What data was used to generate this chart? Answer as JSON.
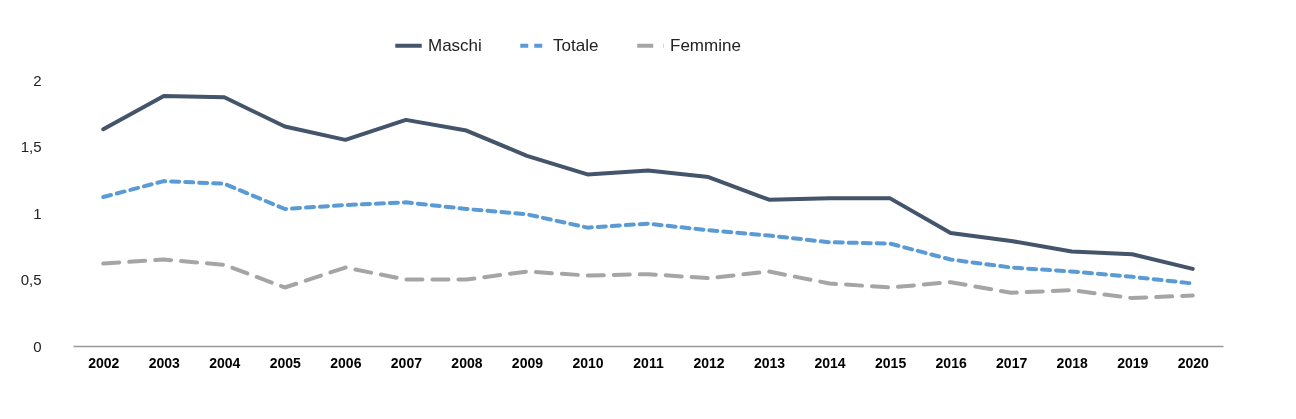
{
  "chart_data": {
    "type": "line",
    "categories": [
      "2002",
      "2003",
      "2004",
      "2005",
      "2006",
      "2007",
      "2008",
      "2009",
      "2010",
      "2011",
      "2012",
      "2013",
      "2014",
      "2015",
      "2016",
      "2017",
      "2018",
      "2019",
      "2020"
    ],
    "series": [
      {
        "name": "Maschi",
        "color": "#44546a",
        "line_style": "solid",
        "values": [
          1.63,
          1.88,
          1.87,
          1.65,
          1.55,
          1.7,
          1.62,
          1.43,
          1.29,
          1.32,
          1.27,
          1.1,
          1.11,
          1.11,
          0.85,
          0.79,
          0.71,
          0.69,
          0.58
        ]
      },
      {
        "name": "Totale",
        "color": "#5b9bd5",
        "line_style": "dotted",
        "values": [
          1.12,
          1.24,
          1.22,
          1.03,
          1.06,
          1.08,
          1.03,
          0.99,
          0.89,
          0.92,
          0.87,
          0.83,
          0.78,
          0.77,
          0.65,
          0.59,
          0.56,
          0.52,
          0.47
        ]
      },
      {
        "name": "Femmine",
        "color": "#a5a5a5",
        "line_style": "dashed",
        "values": [
          0.62,
          0.65,
          0.61,
          0.44,
          0.59,
          0.5,
          0.5,
          0.56,
          0.53,
          0.54,
          0.51,
          0.56,
          0.47,
          0.44,
          0.48,
          0.4,
          0.42,
          0.36,
          0.38
        ]
      }
    ],
    "ylim": [
      0,
      2
    ],
    "yticks": [
      0,
      {
        "value": 0.5,
        "label": "0,5"
      },
      1,
      {
        "value": 1.5,
        "label": "1,5"
      },
      2
    ],
    "legend": "top",
    "grid": false
  }
}
